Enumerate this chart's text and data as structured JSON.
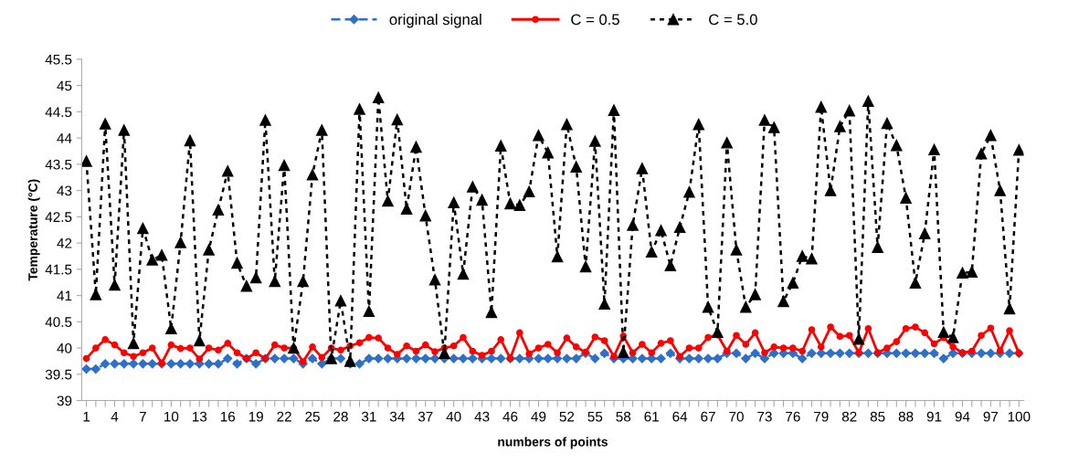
{
  "chart_data": {
    "type": "line",
    "xlabel": "numbers of points",
    "ylabel": "Temperature (°C)",
    "categories": [
      "1",
      null,
      null,
      "4",
      null,
      null,
      "7",
      null,
      null,
      "10",
      null,
      null,
      "13",
      null,
      null,
      "16",
      null,
      null,
      "19",
      null,
      null,
      "22",
      null,
      null,
      "25",
      null,
      null,
      "28",
      null,
      null,
      "31",
      null,
      null,
      "34",
      null,
      null,
      "37",
      null,
      null,
      "40",
      null,
      null,
      "43",
      null,
      null,
      "46",
      null,
      null,
      "49",
      null,
      null,
      "52",
      null,
      null,
      "55",
      null,
      null,
      "58",
      null,
      null,
      "61",
      null,
      null,
      "64",
      null,
      null,
      "67",
      null,
      null,
      "70",
      null,
      null,
      "73",
      null,
      null,
      "76",
      null,
      null,
      "79",
      null,
      null,
      "82",
      null,
      null,
      "85",
      null,
      null,
      "88",
      null,
      null,
      "91",
      null,
      null,
      "94",
      null,
      null,
      "97",
      null,
      null,
      "100"
    ],
    "ylim": [
      39,
      45.5
    ],
    "yticks": [
      39,
      39.5,
      40,
      40.5,
      41,
      41.5,
      42,
      42.5,
      43,
      43.5,
      44,
      44.5,
      45,
      45.5
    ],
    "grid": false,
    "legend": "top",
    "series": [
      {
        "name": "original signal",
        "color": "#2e6fc9",
        "marker": "diamond",
        "line_style": "dashed",
        "values": [
          39.6,
          39.6,
          39.7,
          39.7,
          39.7,
          39.7,
          39.7,
          39.7,
          39.7,
          39.7,
          39.7,
          39.7,
          39.7,
          39.7,
          39.7,
          39.8,
          39.7,
          39.8,
          39.7,
          39.8,
          39.8,
          39.8,
          39.8,
          39.7,
          39.8,
          39.7,
          39.8,
          39.8,
          39.7,
          39.7,
          39.8,
          39.8,
          39.8,
          39.8,
          39.8,
          39.8,
          39.8,
          39.8,
          39.8,
          39.8,
          39.8,
          39.8,
          39.8,
          39.8,
          39.8,
          39.8,
          39.8,
          39.8,
          39.8,
          39.8,
          39.8,
          39.8,
          39.8,
          39.9,
          39.8,
          39.9,
          39.8,
          39.8,
          39.8,
          39.8,
          39.8,
          39.8,
          39.9,
          39.8,
          39.8,
          39.8,
          39.8,
          39.8,
          39.9,
          39.9,
          39.8,
          39.9,
          39.8,
          39.9,
          39.9,
          39.9,
          39.8,
          39.9,
          39.9,
          39.9,
          39.9,
          39.9,
          39.9,
          39.9,
          39.9,
          39.9,
          39.9,
          39.9,
          39.9,
          39.9,
          39.9,
          39.8,
          39.9,
          39.9,
          39.9,
          39.9,
          39.9,
          39.9,
          39.9,
          39.9
        ]
      },
      {
        "name": "C = 0.5",
        "color": "#ff0000",
        "marker": "circle",
        "line_style": "solid",
        "values": [
          39.8,
          40.0,
          40.16,
          40.06,
          39.91,
          39.84,
          39.91,
          40.0,
          39.71,
          40.06,
          39.99,
          40.0,
          39.79,
          40.0,
          39.96,
          40.09,
          39.91,
          39.8,
          39.91,
          39.8,
          40.06,
          40.0,
          40.0,
          39.74,
          40.02,
          39.82,
          40.0,
          39.96,
          40.04,
          40.1,
          40.2,
          40.19,
          40.0,
          39.88,
          40.04,
          39.94,
          40.06,
          39.93,
          40.0,
          40.04,
          40.2,
          39.94,
          39.86,
          39.94,
          40.16,
          39.8,
          40.29,
          39.89,
          40.0,
          40.07,
          39.91,
          40.19,
          40.02,
          39.92,
          40.21,
          40.14,
          39.84,
          40.23,
          39.91,
          40.07,
          39.91,
          40.09,
          40.14,
          39.84,
          40.0,
          40.0,
          40.2,
          40.25,
          39.94,
          40.24,
          40.07,
          40.29,
          39.91,
          40.02,
          40.0,
          40.0,
          39.94,
          40.35,
          40.02,
          40.4,
          40.22,
          40.24,
          39.91,
          40.37,
          39.91,
          40.0,
          40.12,
          40.37,
          40.4,
          40.29,
          40.08,
          40.2,
          40.02,
          39.91,
          39.94,
          40.24,
          40.38,
          39.95,
          40.33,
          39.9
        ]
      },
      {
        "name": "C = 5.0",
        "color": "#000000",
        "marker": "triangle",
        "line_style": "dotted",
        "values": [
          43.56,
          41.02,
          44.27,
          41.2,
          44.15,
          40.09,
          42.28,
          41.68,
          41.77,
          40.37,
          42.01,
          43.95,
          40.14,
          41.87,
          42.63,
          43.37,
          41.62,
          41.18,
          41.34,
          44.34,
          41.27,
          43.48,
          40.0,
          41.27,
          43.3,
          44.15,
          39.8,
          40.9,
          39.75,
          44.55,
          40.7,
          44.77,
          42.8,
          44.35,
          42.65,
          43.83,
          42.52,
          41.3,
          39.9,
          42.77,
          41.41,
          43.07,
          42.82,
          40.68,
          43.85,
          42.75,
          42.72,
          42.98,
          44.05,
          43.72,
          41.74,
          44.26,
          43.45,
          41.55,
          43.94,
          40.84,
          44.53,
          39.92,
          42.34,
          43.42,
          41.83,
          42.24,
          41.57,
          42.3,
          42.97,
          44.26,
          40.78,
          40.3,
          43.91,
          41.87,
          40.78,
          41.02,
          44.34,
          44.2,
          40.89,
          41.24,
          41.75,
          41.7,
          44.59,
          43.0,
          44.22,
          44.52,
          40.17,
          44.7,
          41.92,
          44.28,
          43.86,
          42.86,
          41.24,
          42.18,
          43.78,
          40.3,
          40.2,
          41.43,
          41.45,
          43.7,
          44.05,
          43.0,
          40.75,
          43.77
        ]
      }
    ]
  }
}
